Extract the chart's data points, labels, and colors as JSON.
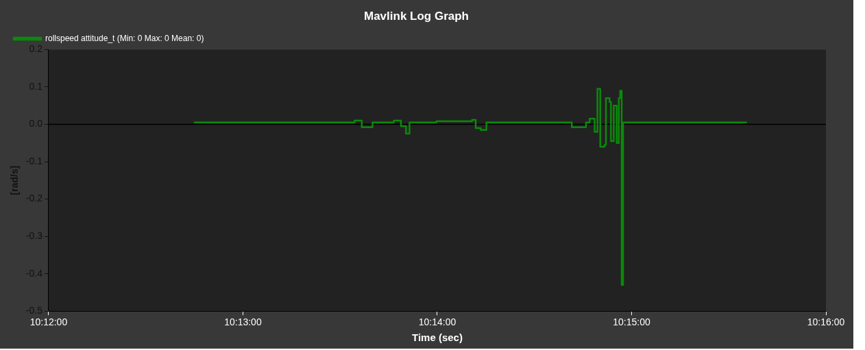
{
  "chart_data": {
    "type": "step",
    "title": "Mavlink Log Graph",
    "xlabel": "Time (sec)",
    "ylabel": "[rad/s]",
    "xlim": [
      10.2,
      10.266667
    ],
    "xticks": [
      {
        "value": 10.2,
        "label": "10:12:00"
      },
      {
        "value": 10.216667,
        "label": "10:13:00"
      },
      {
        "value": 10.233333,
        "label": "10:14:00"
      },
      {
        "value": 10.25,
        "label": "10:15:00"
      },
      {
        "value": 10.266667,
        "label": "10:16:00"
      }
    ],
    "ylim": [
      -0.5,
      0.2
    ],
    "yticks": [
      {
        "value": -0.5,
        "label": "-0.5"
      },
      {
        "value": -0.4,
        "label": "-0.4"
      },
      {
        "value": -0.3,
        "label": "-0.3"
      },
      {
        "value": -0.2,
        "label": "-0.2"
      },
      {
        "value": -0.1,
        "label": "-0.1"
      },
      {
        "value": 0,
        "label": "0.0"
      },
      {
        "value": 0.1,
        "label": "0.1"
      },
      {
        "value": 0.2,
        "label": "0.2"
      }
    ],
    "legend": "top left",
    "grid": false,
    "ref_lines": [
      {
        "axis": "y",
        "value": 0,
        "color": "#000000"
      }
    ],
    "series": [
      {
        "name": "rollspeed attitude_t (Min: 0 Max: 0 Mean: 0)",
        "color": "#0a8a0a",
        "x": [
          10.21245,
          10.22473,
          10.22625,
          10.22686,
          10.22778,
          10.22961,
          10.23022,
          10.23065,
          10.23095,
          10.23327,
          10.23632,
          10.23663,
          10.23706,
          10.23755,
          10.24243,
          10.24487,
          10.24609,
          10.2464,
          10.24683,
          10.24707,
          10.24731,
          10.24768,
          10.2478,
          10.24811,
          10.24823,
          10.24847,
          10.24872,
          10.2489,
          10.24902,
          10.24915,
          10.24927,
          10.25989
        ],
        "values": [
          0.005,
          0.005,
          0.01,
          -0.008,
          0.005,
          0.01,
          -0.005,
          -0.025,
          0.005,
          0.008,
          0.012,
          -0.01,
          -0.015,
          0.005,
          0.005,
          -0.008,
          0.005,
          0.015,
          -0.02,
          0.095,
          -0.06,
          -0.055,
          0.07,
          0.06,
          -0.045,
          0.05,
          -0.05,
          0.07,
          0.09,
          -0.43,
          0.005,
          0.005
        ]
      }
    ]
  }
}
